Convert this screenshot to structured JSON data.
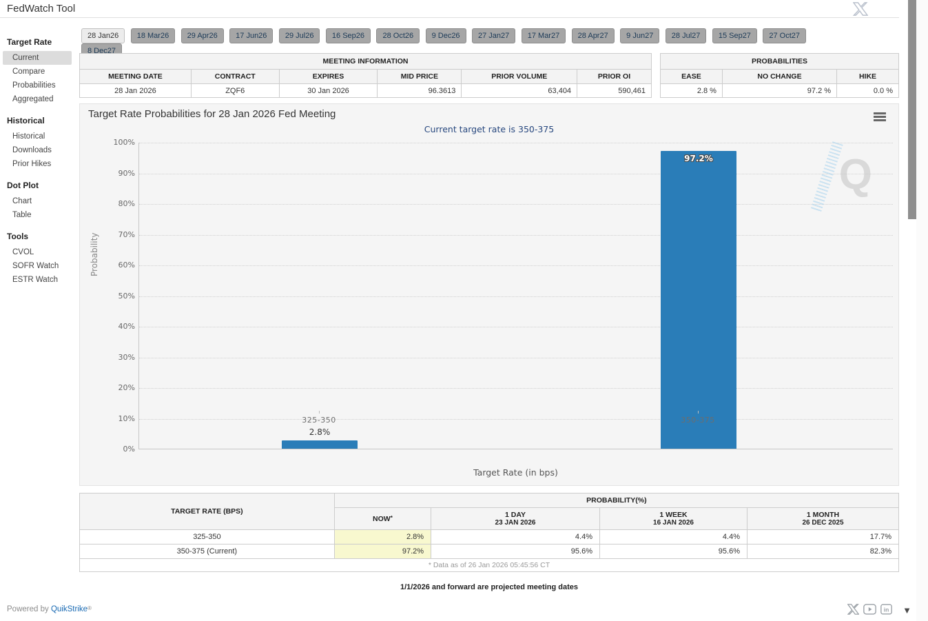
{
  "app": {
    "title": "FedWatch Tool"
  },
  "colors": {
    "bar_blue": "#2a7db8",
    "now_highlight": "#f8f8cf",
    "selected_tab_bg": "#ececec",
    "tab_bg": "#a6a6a6",
    "subtitle_navy": "#27477e",
    "link_blue": "#1668b2"
  },
  "header_tabs": [
    "28 Jan26",
    "18 Mar26",
    "29 Apr26",
    "17 Jun26",
    "29 Jul26",
    "16 Sep26",
    "28 Oct26",
    "9 Dec26",
    "27 Jan27",
    "17 Mar27",
    "28 Apr27",
    "9 Jun27",
    "28 Jul27",
    "15 Sep27",
    "27 Oct27",
    "8 Dec27"
  ],
  "sidebar": {
    "sections": [
      {
        "title": "Target Rate",
        "items": [
          "Current",
          "Compare",
          "Probabilities",
          "Aggregated"
        ]
      },
      {
        "title": "Historical",
        "items": [
          "Historical",
          "Downloads",
          "Prior Hikes"
        ]
      },
      {
        "title": "Dot Plot",
        "items": [
          "Chart",
          "Table"
        ]
      },
      {
        "title": "Tools",
        "items": [
          "CVOL",
          "SOFR Watch",
          "ESTR Watch"
        ]
      }
    ],
    "selected": "Current"
  },
  "meeting_info": {
    "title": "MEETING INFORMATION",
    "headers": [
      "MEETING DATE",
      "CONTRACT",
      "EXPIRES",
      "MID PRICE",
      "PRIOR VOLUME",
      "PRIOR OI"
    ],
    "row": {
      "meeting_date": "28 Jan 2026",
      "contract": "ZQF6",
      "expires": "30 Jan 2026",
      "mid_price": "96.3613",
      "prior_volume": "63,404",
      "prior_oi": "590,461"
    }
  },
  "probabilities_summary": {
    "title": "PROBABILITIES",
    "headers": [
      "EASE",
      "NO CHANGE",
      "HIKE"
    ],
    "row": {
      "ease": "2.8 %",
      "no_change": "97.2 %",
      "hike": "0.0 %"
    }
  },
  "chart_data": {
    "type": "bar",
    "title": "Target Rate Probabilities for 28 Jan 2026 Fed Meeting",
    "subtitle": "Current target rate is 350-375",
    "categories": [
      "325-350",
      "350-375"
    ],
    "values": [
      2.8,
      97.2
    ],
    "value_labels": [
      "2.8%",
      "97.2%"
    ],
    "xlabel": "Target Rate (in bps)",
    "ylabel": "Probability",
    "ylim": [
      0,
      100
    ],
    "ytick_step": 10,
    "yticks_display": [
      "100%",
      "90%",
      "80%",
      "70%",
      "60%",
      "50%",
      "40%",
      "30%",
      "20%",
      "10%",
      "0%"
    ],
    "grid": "dotted",
    "legend": "none",
    "bar_color": "#2a7db8"
  },
  "prob_table": {
    "col1_header": "TARGET RATE (BPS)",
    "group_header": "PROBABILITY(%)",
    "sub_headers": [
      {
        "label": "NOW",
        "sup": "*"
      },
      {
        "label": "1 DAY",
        "date": "23 JAN 2026"
      },
      {
        "label": "1 WEEK",
        "date": "16 JAN 2026"
      },
      {
        "label": "1 MONTH",
        "date": "26 DEC 2025"
      }
    ],
    "rows": [
      {
        "rate": "325-350",
        "now": "2.8%",
        "day": "4.4%",
        "week": "4.4%",
        "month": "17.7%"
      },
      {
        "rate": "350-375 (Current)",
        "now": "97.2%",
        "day": "95.6%",
        "week": "95.6%",
        "month": "82.3%"
      }
    ],
    "footnote": "* Data as of 26 Jan 2026 05:45:56 CT"
  },
  "notes": {
    "projected": "1/1/2026 and forward are projected meeting dates"
  },
  "footer": {
    "powered_by": "Powered by",
    "brand": "QuikStrike",
    "reg": "®"
  }
}
